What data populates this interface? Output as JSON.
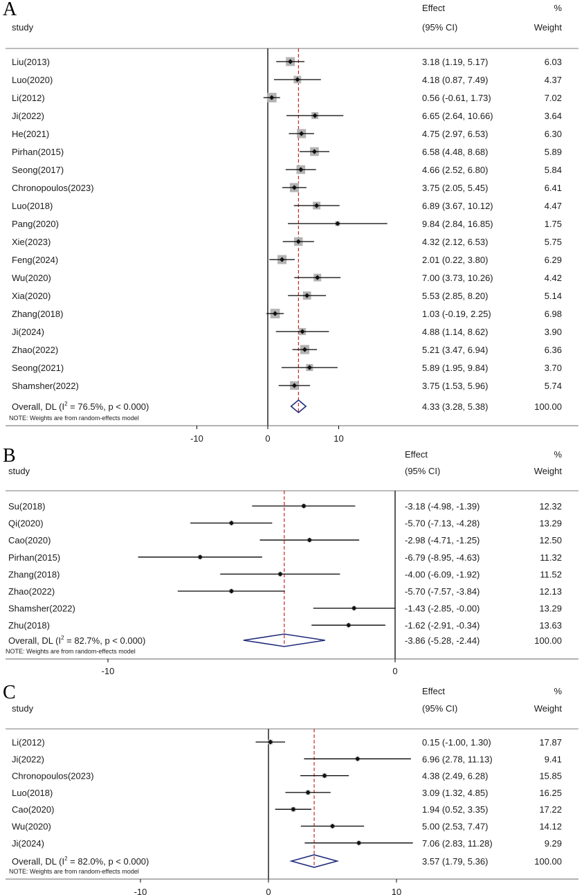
{
  "chart_data": [
    {
      "type": "forest",
      "panel": "A",
      "header": {
        "study": "study",
        "effect": "Effect",
        "ci": "(95% CI)",
        "pct": "%",
        "weight": "Weight"
      },
      "xlim": [
        -15,
        20
      ],
      "xticks": [
        -10,
        0,
        10
      ],
      "null_line": 0,
      "studies": [
        {
          "name": "Liu(2013)",
          "est": 3.18,
          "lo": 1.19,
          "hi": 5.17,
          "ci_text": "3.18 (1.19, 5.17)",
          "weight": 6.03,
          "weight_text": "6.03"
        },
        {
          "name": "Luo(2020)",
          "est": 4.18,
          "lo": 0.87,
          "hi": 7.49,
          "ci_text": "4.18 (0.87, 7.49)",
          "weight": 4.37,
          "weight_text": "4.37"
        },
        {
          "name": "Li(2012)",
          "est": 0.56,
          "lo": -0.61,
          "hi": 1.73,
          "ci_text": "0.56 (-0.61, 1.73)",
          "weight": 7.02,
          "weight_text": "7.02"
        },
        {
          "name": "Ji(2022)",
          "est": 6.65,
          "lo": 2.64,
          "hi": 10.66,
          "ci_text": "6.65 (2.64, 10.66)",
          "weight": 3.64,
          "weight_text": "3.64"
        },
        {
          "name": "He(2021)",
          "est": 4.75,
          "lo": 2.97,
          "hi": 6.53,
          "ci_text": "4.75 (2.97, 6.53)",
          "weight": 6.3,
          "weight_text": "6.30"
        },
        {
          "name": "Pirhan(2015)",
          "est": 6.58,
          "lo": 4.48,
          "hi": 8.68,
          "ci_text": "6.58 (4.48, 8.68)",
          "weight": 5.89,
          "weight_text": "5.89"
        },
        {
          "name": "Seong(2017)",
          "est": 4.66,
          "lo": 2.52,
          "hi": 6.8,
          "ci_text": "4.66 (2.52, 6.80)",
          "weight": 5.84,
          "weight_text": "5.84"
        },
        {
          "name": "Chronopoulos(2023)",
          "est": 3.75,
          "lo": 2.05,
          "hi": 5.45,
          "ci_text": "3.75 (2.05, 5.45)",
          "weight": 6.41,
          "weight_text": "6.41"
        },
        {
          "name": "Luo(2018)",
          "est": 6.89,
          "lo": 3.67,
          "hi": 10.12,
          "ci_text": "6.89 (3.67, 10.12)",
          "weight": 4.47,
          "weight_text": "4.47"
        },
        {
          "name": "Pang(2020)",
          "est": 9.84,
          "lo": 2.84,
          "hi": 16.85,
          "ci_text": "9.84 (2.84, 16.85)",
          "weight": 1.75,
          "weight_text": "1.75"
        },
        {
          "name": "Xie(2023)",
          "est": 4.32,
          "lo": 2.12,
          "hi": 6.53,
          "ci_text": "4.32 (2.12, 6.53)",
          "weight": 5.75,
          "weight_text": "5.75"
        },
        {
          "name": "Feng(2024)",
          "est": 2.01,
          "lo": 0.22,
          "hi": 3.8,
          "ci_text": "2.01 (0.22, 3.80)",
          "weight": 6.29,
          "weight_text": "6.29"
        },
        {
          "name": "Wu(2020)",
          "est": 7.0,
          "lo": 3.73,
          "hi": 10.26,
          "ci_text": "7.00 (3.73, 10.26)",
          "weight": 4.42,
          "weight_text": "4.42"
        },
        {
          "name": "Xia(2020)",
          "est": 5.53,
          "lo": 2.85,
          "hi": 8.2,
          "ci_text": "5.53 (2.85, 8.20)",
          "weight": 5.14,
          "weight_text": "5.14"
        },
        {
          "name": "Zhang(2018)",
          "est": 1.03,
          "lo": -0.19,
          "hi": 2.25,
          "ci_text": "1.03 (-0.19, 2.25)",
          "weight": 6.98,
          "weight_text": "6.98"
        },
        {
          "name": "Ji(2024)",
          "est": 4.88,
          "lo": 1.14,
          "hi": 8.62,
          "ci_text": "4.88 (1.14, 8.62)",
          "weight": 3.9,
          "weight_text": "3.90"
        },
        {
          "name": "Zhao(2022)",
          "est": 5.21,
          "lo": 3.47,
          "hi": 6.94,
          "ci_text": "5.21 (3.47, 6.94)",
          "weight": 6.36,
          "weight_text": "6.36"
        },
        {
          "name": "Seong(2021)",
          "est": 5.89,
          "lo": 1.95,
          "hi": 9.84,
          "ci_text": "5.89 (1.95, 9.84)",
          "weight": 3.7,
          "weight_text": "3.70"
        },
        {
          "name": "Shamsher(2022)",
          "est": 3.75,
          "lo": 1.53,
          "hi": 5.96,
          "ci_text": "3.75 (1.53, 5.96)",
          "weight": 5.74,
          "weight_text": "5.74"
        }
      ],
      "overall": {
        "label": "Overall, DL (I",
        "sup": "2",
        "label_rest": " = 76.5%, p < 0.000)",
        "est": 4.33,
        "lo": 3.28,
        "hi": 5.38,
        "ci_text": "4.33 (3.28, 5.38)",
        "weight_text": "100.00"
      },
      "note": "NOTE: Weights are from random-effects model"
    },
    {
      "type": "forest",
      "panel": "B",
      "header": {
        "study": "study",
        "effect": "Effect",
        "ci": "(95% CI)",
        "pct": "%",
        "weight": "Weight"
      },
      "xlim": [
        -12.4,
        0
      ],
      "xticks": [
        -10,
        0
      ],
      "null_line": 0,
      "studies": [
        {
          "name": "Su(2018)",
          "est": -3.18,
          "lo": -4.98,
          "hi": -1.39,
          "ci_text": "-3.18 (-4.98, -1.39)",
          "weight": 12.32,
          "weight_text": "12.32"
        },
        {
          "name": "Qi(2020)",
          "est": -5.7,
          "lo": -7.13,
          "hi": -4.28,
          "ci_text": "-5.70 (-7.13, -4.28)",
          "weight": 13.29,
          "weight_text": "13.29"
        },
        {
          "name": "Cao(2020)",
          "est": -2.98,
          "lo": -4.71,
          "hi": -1.25,
          "ci_text": "-2.98 (-4.71, -1.25)",
          "weight": 12.5,
          "weight_text": "12.50"
        },
        {
          "name": "Pirhan(2015)",
          "est": -6.79,
          "lo": -8.95,
          "hi": -4.63,
          "ci_text": "-6.79 (-8.95, -4.63)",
          "weight": 11.32,
          "weight_text": "11.32"
        },
        {
          "name": "Zhang(2018)",
          "est": -4.0,
          "lo": -6.09,
          "hi": -1.92,
          "ci_text": "-4.00 (-6.09, -1.92)",
          "weight": 11.52,
          "weight_text": "11.52"
        },
        {
          "name": "Zhao(2022)",
          "est": -5.7,
          "lo": -7.57,
          "hi": -3.84,
          "ci_text": "-5.70 (-7.57, -3.84)",
          "weight": 12.13,
          "weight_text": "12.13"
        },
        {
          "name": "Shamsher(2022)",
          "est": -1.43,
          "lo": -2.85,
          "hi": -0.0,
          "ci_text": "-1.43 (-2.85, -0.00)",
          "weight": 13.29,
          "weight_text": "13.29"
        },
        {
          "name": "Zhu(2018)",
          "est": -1.62,
          "lo": -2.91,
          "hi": -0.34,
          "ci_text": "-1.62 (-2.91, -0.34)",
          "weight": 13.63,
          "weight_text": "13.63"
        }
      ],
      "overall": {
        "label": "Overall, DL (I",
        "sup": "2",
        "label_rest": " = 82.7%, p < 0.000)",
        "est": -3.86,
        "lo": -5.28,
        "hi": -2.44,
        "ci_text": "-3.86 (-5.28, -2.44)",
        "weight_text": "100.00"
      },
      "note": "NOTE: Weights are from random-effects model"
    },
    {
      "type": "forest",
      "panel": "C",
      "header": {
        "study": "study",
        "effect": "Effect",
        "ci": "(95% CI)",
        "pct": "%",
        "weight": "Weight"
      },
      "xlim": [
        -17,
        15
      ],
      "xticks": [
        -10,
        0,
        10
      ],
      "null_line": 0,
      "studies": [
        {
          "name": "Li(2012)",
          "est": 0.15,
          "lo": -1.0,
          "hi": 1.3,
          "ci_text": "0.15 (-1.00, 1.30)",
          "weight": 17.87,
          "weight_text": "17.87"
        },
        {
          "name": "Ji(2022)",
          "est": 6.96,
          "lo": 2.78,
          "hi": 11.13,
          "ci_text": "6.96 (2.78, 11.13)",
          "weight": 9.41,
          "weight_text": "9.41"
        },
        {
          "name": "Chronopoulos(2023)",
          "est": 4.38,
          "lo": 2.49,
          "hi": 6.28,
          "ci_text": "4.38 (2.49, 6.28)",
          "weight": 15.85,
          "weight_text": "15.85"
        },
        {
          "name": "Luo(2018)",
          "est": 3.09,
          "lo": 1.32,
          "hi": 4.85,
          "ci_text": "3.09 (1.32, 4.85)",
          "weight": 16.25,
          "weight_text": "16.25"
        },
        {
          "name": "Cao(2020)",
          "est": 1.94,
          "lo": 0.52,
          "hi": 3.35,
          "ci_text": "1.94 (0.52, 3.35)",
          "weight": 17.22,
          "weight_text": "17.22"
        },
        {
          "name": "Wu(2020)",
          "est": 5.0,
          "lo": 2.53,
          "hi": 7.47,
          "ci_text": "5.00 (2.53, 7.47)",
          "weight": 14.12,
          "weight_text": "14.12"
        },
        {
          "name": "Ji(2024)",
          "est": 7.06,
          "lo": 2.83,
          "hi": 11.28,
          "ci_text": "7.06 (2.83, 11.28)",
          "weight": 9.29,
          "weight_text": "9.29"
        }
      ],
      "overall": {
        "label": "Overall, DL (I",
        "sup": "2",
        "label_rest": " = 82.0%, p < 0.000)",
        "est": 3.57,
        "lo": 1.79,
        "hi": 5.36,
        "ci_text": "3.57 (1.79, 5.36)",
        "weight_text": "100.00"
      },
      "note": "NOTE: Weights are from random-effects model"
    }
  ],
  "colors": {
    "diamond": "#1f2a7a",
    "pooled_line": "#cc2222",
    "box": "#b3b3b3",
    "marker": "#111111",
    "axis": "#000000"
  }
}
